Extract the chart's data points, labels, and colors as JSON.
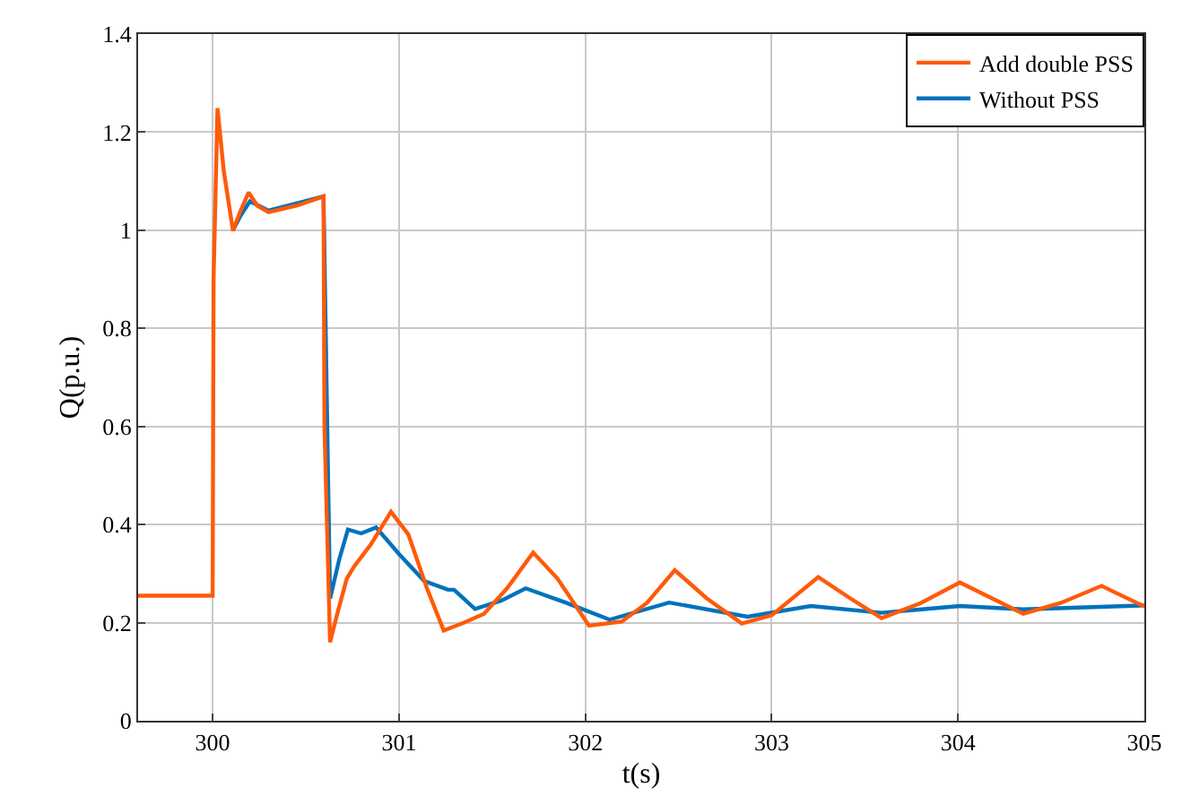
{
  "chart_data": {
    "type": "line",
    "xlabel": "t(s)",
    "ylabel": "Q(p.u.)",
    "xlim": [
      299.6,
      305
    ],
    "xticks": [
      300,
      301,
      302,
      303,
      304,
      305
    ],
    "ylim": [
      0,
      1.4
    ],
    "yticks": [
      0,
      0.2,
      0.4,
      0.6,
      0.8,
      1,
      1.2,
      1.4
    ],
    "grid": true,
    "legend": "top right",
    "line_style": "solid",
    "series": [
      {
        "name": "Add double PSS",
        "color": "#ff5a0a",
        "x": [
          299.6,
          300.0,
          300.005,
          300.026,
          300.06,
          300.109,
          300.15,
          300.193,
          300.24,
          300.3,
          300.45,
          300.595,
          300.6,
          300.63,
          300.67,
          300.72,
          300.76,
          300.85,
          300.957,
          301.05,
          301.15,
          301.24,
          301.35,
          301.456,
          301.58,
          301.72,
          301.85,
          302.02,
          302.195,
          302.33,
          302.48,
          302.65,
          302.84,
          303.0,
          303.25,
          303.42,
          303.59,
          303.8,
          304.01,
          304.18,
          304.35,
          304.55,
          304.77,
          305.0
        ],
        "values": [
          0.255,
          0.255,
          0.9,
          1.249,
          1.12,
          0.999,
          1.04,
          1.077,
          1.05,
          1.037,
          1.05,
          1.069,
          0.6,
          0.16,
          0.22,
          0.29,
          0.315,
          0.36,
          0.426,
          0.38,
          0.27,
          0.184,
          0.2,
          0.218,
          0.27,
          0.343,
          0.29,
          0.194,
          0.202,
          0.24,
          0.307,
          0.25,
          0.198,
          0.215,
          0.293,
          0.25,
          0.209,
          0.24,
          0.282,
          0.25,
          0.218,
          0.24,
          0.275,
          0.233
        ]
      },
      {
        "name": "Without PSS",
        "color": "#0072bd",
        "x": [
          300.109,
          300.15,
          300.2,
          300.3,
          300.45,
          300.595,
          300.63,
          300.68,
          300.726,
          300.797,
          300.877,
          301.0,
          301.135,
          301.263,
          301.295,
          301.408,
          301.55,
          301.68,
          301.9,
          302.13,
          302.45,
          302.87,
          303.21,
          303.59,
          304.01,
          304.35,
          305.0
        ],
        "values": [
          1.0,
          1.03,
          1.059,
          1.04,
          1.055,
          1.069,
          0.249,
          0.33,
          0.39,
          0.382,
          0.394,
          0.34,
          0.285,
          0.267,
          0.267,
          0.228,
          0.245,
          0.27,
          0.24,
          0.206,
          0.241,
          0.212,
          0.234,
          0.22,
          0.234,
          0.227,
          0.235
        ]
      }
    ]
  }
}
